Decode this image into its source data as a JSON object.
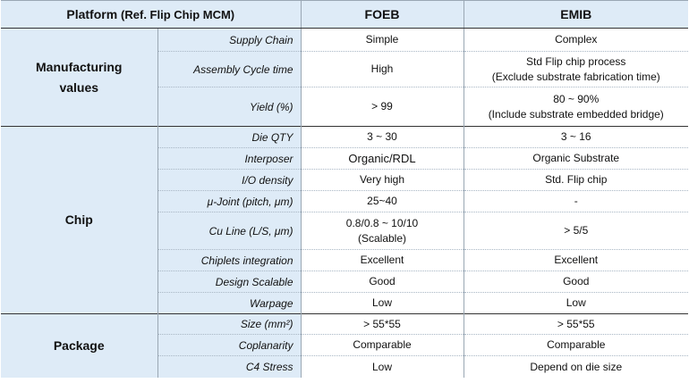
{
  "header": {
    "platform": "Platform",
    "platform_sub": "(Ref. Flip Chip MCM)",
    "foeb": "FOEB",
    "emib": "EMIB"
  },
  "groups": {
    "manufacturing": "Manufacturing values",
    "chip": "Chip",
    "package": "Package"
  },
  "rows": [
    {
      "prop": "Supply Chain",
      "foeb": "Simple",
      "emib": "Complex"
    },
    {
      "prop": "Assembly Cycle time",
      "foeb": "High",
      "emib": "Std Flip chip process",
      "emib2": "(Exclude substrate fabrication time)"
    },
    {
      "prop": "Yield (%)",
      "foeb": "> 99",
      "emib": "80 ~ 90%",
      "emib2": "(Include substrate embedded bridge)"
    },
    {
      "prop": "Die QTY",
      "foeb": "3 ~ 30",
      "emib": "3 ~ 16"
    },
    {
      "prop": "Interposer",
      "foeb": "Organic/RDL",
      "emib": "Organic Substrate"
    },
    {
      "prop": "I/O density",
      "foeb": "Very high",
      "emib": "Std. Flip chip"
    },
    {
      "prop": "μ-Joint (pitch, μm)",
      "foeb": "25~40",
      "emib": "-"
    },
    {
      "prop": "Cu Line (L/S, μm)",
      "foeb": "0.8/0.8 ~ 10/10",
      "foeb2": "(Scalable)",
      "emib": "> 5/5"
    },
    {
      "prop": "Chiplets integration",
      "foeb": "Excellent",
      "emib": "Excellent"
    },
    {
      "prop": "Design Scalable",
      "foeb": "Good",
      "emib": "Good"
    },
    {
      "prop": "Warpage",
      "foeb": "Low",
      "emib": "Low"
    },
    {
      "prop": "Size (mm²)",
      "foeb": "> 55*55",
      "emib": "> 55*55"
    },
    {
      "prop": "Coplanarity",
      "foeb": "Comparable",
      "emib": "Comparable"
    },
    {
      "prop": "C4 Stress",
      "foeb": "Low",
      "emib": "Depend on die size"
    }
  ]
}
